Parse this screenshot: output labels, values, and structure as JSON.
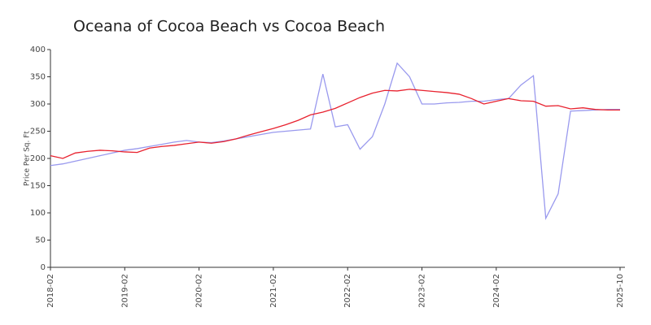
{
  "chart_data": {
    "type": "line",
    "title": "Oceana of Cocoa Beach vs Cocoa Beach",
    "y_label": "Price Per Sq. Ft",
    "x": [
      "2018-02",
      "2018-04",
      "2018-06",
      "2018-08",
      "2018-10",
      "2018-12",
      "2019-02",
      "2019-04",
      "2019-06",
      "2019-08",
      "2019-10",
      "2019-12",
      "2020-02",
      "2020-04",
      "2020-06",
      "2020-08",
      "2020-10",
      "2020-12",
      "2021-02",
      "2021-04",
      "2021-06",
      "2021-08",
      "2021-10",
      "2021-12",
      "2022-02",
      "2022-04",
      "2022-06",
      "2022-08",
      "2022-10",
      "2022-12",
      "2023-02",
      "2023-04",
      "2023-06",
      "2023-08",
      "2023-10",
      "2023-12",
      "2024-02",
      "2024-04",
      "2024-06",
      "2024-08",
      "2024-10",
      "2024-12",
      "2025-02",
      "2025-04",
      "2025-06",
      "2025-08",
      "2025-10"
    ],
    "series": [
      {
        "color": "#9999ee",
        "values": [
          187,
          190,
          195,
          200,
          205,
          210,
          215,
          218,
          222,
          226,
          230,
          233,
          230,
          229,
          232,
          236,
          240,
          244,
          248,
          250,
          252,
          254,
          355,
          258,
          262,
          217,
          240,
          300,
          375,
          350,
          300,
          300,
          302,
          303,
          305,
          305,
          308,
          310,
          335,
          352,
          90,
          135,
          287,
          288,
          289,
          290,
          290
        ]
      },
      {
        "color": "#e8212e",
        "values": [
          205,
          200,
          210,
          213,
          215,
          214,
          212,
          211,
          219,
          222,
          224,
          227,
          230,
          228,
          231,
          236,
          243,
          249,
          255,
          262,
          270,
          280,
          285,
          292,
          302,
          312,
          320,
          325,
          324,
          327,
          325,
          323,
          321,
          318,
          310,
          300,
          305,
          310,
          306,
          305,
          296,
          297,
          291,
          293,
          290,
          289,
          289
        ]
      }
    ],
    "xlim": [
      "2018-02",
      "2025-10"
    ],
    "xticks": [
      "2018-02",
      "2019-02",
      "2020-02",
      "2021-02",
      "2022-02",
      "2023-02",
      "2024-02",
      "2025-10"
    ],
    "ylim": [
      0,
      400
    ],
    "yticks": [
      0,
      50,
      100,
      150,
      200,
      250,
      300,
      350,
      400
    ]
  }
}
